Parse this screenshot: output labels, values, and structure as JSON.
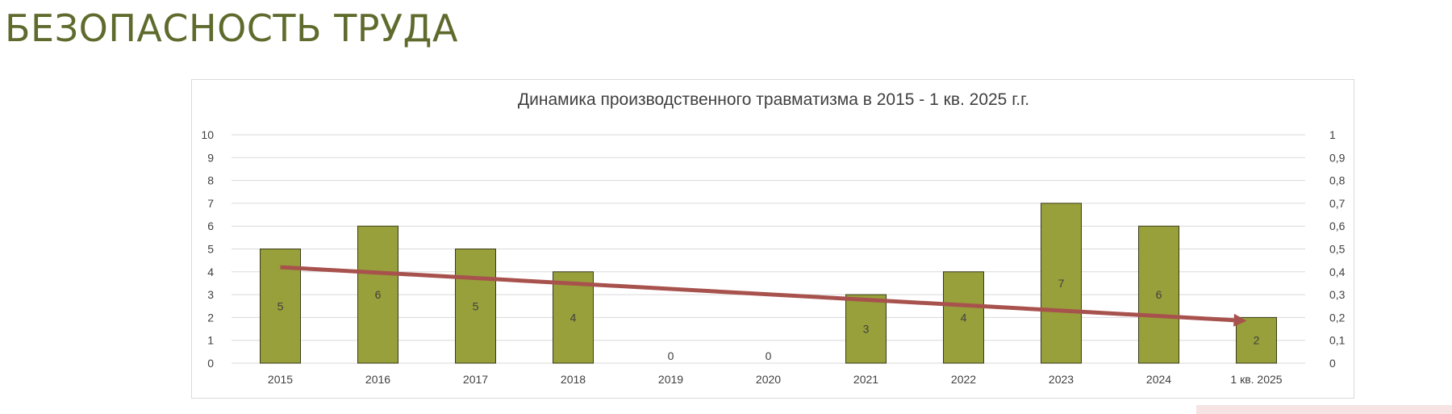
{
  "page": {
    "title": "БЕЗОПАСНОСТЬ ТРУДА"
  },
  "chart_data": {
    "type": "bar",
    "title": "Динамика производственного травматизма в 2015 - 1 кв. 2025 г.г.",
    "categories": [
      "2015",
      "2016",
      "2017",
      "2018",
      "2019",
      "2020",
      "2021",
      "2022",
      "2023",
      "2024",
      "1 кв. 2025"
    ],
    "values": [
      5,
      6,
      5,
      4,
      0,
      0,
      3,
      4,
      7,
      6,
      2
    ],
    "data_labels": [
      "5",
      "6",
      "5",
      "4",
      "0",
      "0",
      "3",
      "4",
      "7",
      "6",
      "2"
    ],
    "ylim": [
      0,
      10
    ],
    "y_ticks": [
      "0",
      "1",
      "2",
      "3",
      "4",
      "5",
      "6",
      "7",
      "8",
      "9",
      "10"
    ],
    "y2lim": [
      0,
      1
    ],
    "y2_ticks": [
      "0",
      "0,1",
      "0,2",
      "0,3",
      "0,4",
      "0,5",
      "0,6",
      "0,7",
      "0,8",
      "0,9",
      "1"
    ],
    "grid": true,
    "trend_line": {
      "start_value": 4.2,
      "end_value": 1.85
    },
    "colors": {
      "bar": "#97a03a",
      "bar_border": "#3a3a1a",
      "trend": "#a8524e",
      "grid": "#d9d9d9",
      "text": "#404040",
      "title": "#404040",
      "page_title": "#5f6b2d"
    }
  }
}
